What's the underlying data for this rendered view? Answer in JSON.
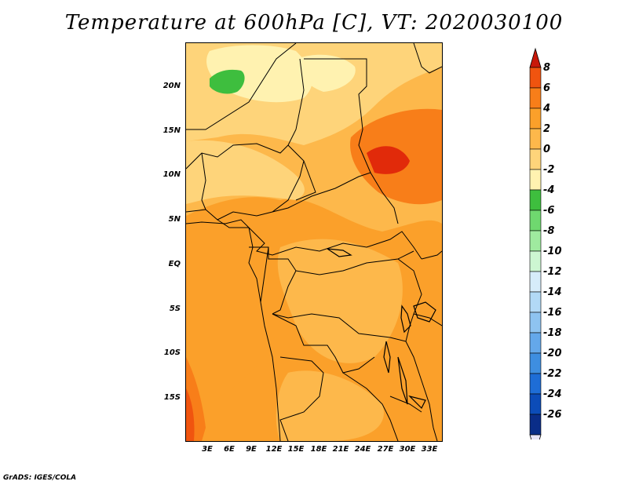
{
  "title": "Temperature at 600hPa [C], VT: 2020030100",
  "footer": "GrADS: IGES/COLA",
  "map": {
    "region": "Central Africa",
    "lat_labels": [
      "20N",
      "15N",
      "10N",
      "5N",
      "EQ",
      "5S",
      "10S",
      "15S"
    ],
    "lon_labels": [
      "3E",
      "6E",
      "9E",
      "12E",
      "15E",
      "18E",
      "21E",
      "24E",
      "27E",
      "30E",
      "33E"
    ],
    "background_color": "#f5b040"
  },
  "colorbar": {
    "labels": [
      "8",
      "6",
      "4",
      "2",
      "0",
      "-2",
      "-4",
      "-6",
      "-8",
      "-10",
      "-12",
      "-14",
      "-16",
      "-18",
      "-20",
      "-22",
      "-24",
      "-26"
    ],
    "colors": [
      "#e12a0a",
      "#f0540f",
      "#f87e19",
      "#fba02a",
      "#fdb84b",
      "#fed47a",
      "#fff2b0",
      "#3ebe3e",
      "#6fd86f",
      "#9fea9f",
      "#cdf6d2",
      "#d6ecfa",
      "#b2d9f6",
      "#8ec3f0",
      "#64a8ea",
      "#3e8ee0",
      "#1e6dd6",
      "#0c4cb8",
      "#0a2d88",
      "#060e5a"
    ],
    "top_arrow_color": "#c8180a",
    "bottom_arrow_color": "#e8e4f8"
  }
}
